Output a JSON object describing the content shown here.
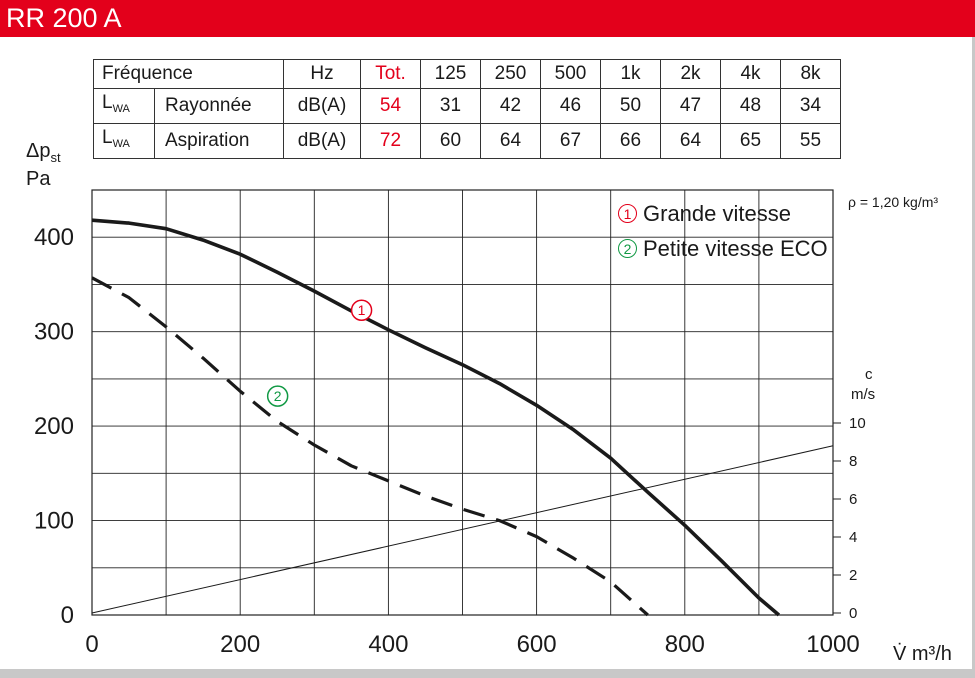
{
  "header": {
    "title": "RR 200 A"
  },
  "table": {
    "header": {
      "label": "Fréquence",
      "unit": "Hz",
      "total": "Tot.",
      "bands": [
        "125",
        "250",
        "500",
        "1k",
        "2k",
        "4k",
        "8k"
      ]
    },
    "rows": [
      {
        "lwa": "L",
        "lwa_sub": "WA",
        "name": "Rayonnée",
        "unit": "dB(A)",
        "total": "54",
        "values": [
          "31",
          "42",
          "46",
          "50",
          "47",
          "48",
          "34"
        ]
      },
      {
        "lwa": "L",
        "lwa_sub": "WA",
        "name": "Aspiration",
        "unit": "dB(A)",
        "total": "72",
        "values": [
          "60",
          "64",
          "67",
          "66",
          "64",
          "65",
          "55"
        ]
      }
    ]
  },
  "chart_data": {
    "type": "line",
    "ylabel_line1": "Δp",
    "ylabel_sub": "st",
    "ylabel_line2": "Pa",
    "xlabel": "V̇ m³/h",
    "density_note": "ρ = 1,20 kg/m³",
    "secondary_axis_label_line1": "c",
    "secondary_axis_label_line2": "m/s",
    "xlim": [
      0,
      1000
    ],
    "ylim": [
      0,
      450
    ],
    "x_ticks": [
      "0",
      "200",
      "400",
      "600",
      "800",
      "1000"
    ],
    "y_ticks": [
      "0",
      "100",
      "200",
      "300",
      "400"
    ],
    "secondary_ylim": [
      0,
      10
    ],
    "secondary_ticks": [
      "0",
      "2",
      "4",
      "6",
      "8",
      "10"
    ],
    "grid": true,
    "legend_position": "top-right",
    "legend": [
      {
        "symbol": "1",
        "label": "Grande vitesse",
        "color": "#e3001b"
      },
      {
        "symbol": "2",
        "label": "Petite vitesse ECO",
        "color": "#119944"
      }
    ],
    "series": [
      {
        "name": "Grande vitesse",
        "marker": "1",
        "style": "solid",
        "x": [
          0,
          50,
          100,
          150,
          200,
          250,
          300,
          350,
          400,
          450,
          500,
          550,
          600,
          650,
          700,
          750,
          800,
          850,
          900,
          927
        ],
        "y": [
          418,
          415,
          409,
          397,
          382,
          363,
          343,
          322,
          302,
          283,
          265,
          245,
          222,
          196,
          166,
          130,
          95,
          57,
          18,
          0
        ]
      },
      {
        "name": "Petite vitesse ECO",
        "marker": "2",
        "style": "dashed",
        "x": [
          0,
          50,
          100,
          150,
          200,
          250,
          300,
          350,
          400,
          450,
          500,
          550,
          600,
          650,
          700,
          750
        ],
        "y": [
          357,
          336,
          305,
          272,
          237,
          205,
          180,
          158,
          142,
          126,
          112,
          100,
          83,
          60,
          35,
          0
        ]
      },
      {
        "name": "",
        "axis": "secondary",
        "style": "thin",
        "x": [
          0,
          1000
        ],
        "y": [
          0,
          8.8
        ]
      }
    ]
  }
}
